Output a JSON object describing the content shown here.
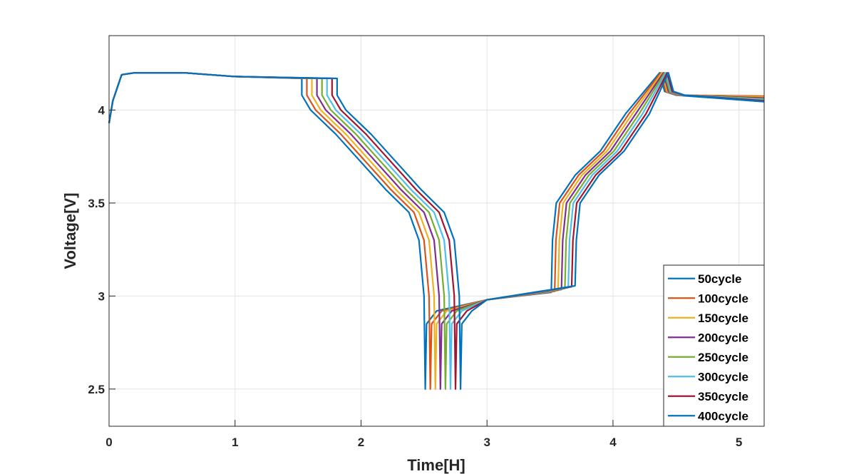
{
  "chart_data": {
    "type": "line",
    "xlabel": "Time[H]",
    "ylabel": "Voltage[V]",
    "xlim": [
      0,
      5.2
    ],
    "ylim": [
      2.3,
      4.4
    ],
    "xticks": [
      0,
      1,
      2,
      3,
      4,
      5
    ],
    "yticks": [
      2.5,
      3,
      3.5,
      4
    ],
    "grid": true,
    "legend_position": "lower right",
    "series": [
      {
        "name": "50cycle",
        "color": "#0072BD",
        "x": [
          0,
          0.03,
          0.1,
          0.2,
          0.6,
          1,
          1.53,
          1.53,
          1.6,
          1.8,
          2,
          2.2,
          2.38,
          2.46,
          2.5,
          2.51,
          2.52,
          2.6,
          3,
          3.51,
          3.52,
          3.55,
          3.7,
          3.9,
          4.1,
          4.37,
          4.41,
          4.5,
          5.2
        ],
        "values": [
          3.93,
          4.05,
          4.19,
          4.2,
          4.2,
          4.18,
          4.17,
          4.08,
          4,
          3.87,
          3.72,
          3.57,
          3.45,
          3.3,
          3,
          2.5,
          2.85,
          2.92,
          2.98,
          3.02,
          3.3,
          3.5,
          3.65,
          3.78,
          3.98,
          4.2,
          4.1,
          4.08,
          4.045
        ]
      },
      {
        "name": "100cycle",
        "color": "#D95319",
        "x": [
          0,
          0.03,
          0.1,
          0.2,
          0.6,
          1,
          1.57,
          1.57,
          1.64,
          1.84,
          2.04,
          2.24,
          2.42,
          2.5,
          2.54,
          2.55,
          2.56,
          2.64,
          3,
          3.537,
          3.547,
          3.577,
          3.727,
          3.927,
          4.127,
          4.38,
          4.42,
          4.51,
          5.2
        ],
        "values": [
          3.93,
          4.05,
          4.19,
          4.2,
          4.2,
          4.18,
          4.17,
          4.08,
          4,
          3.87,
          3.72,
          3.57,
          3.45,
          3.3,
          3,
          2.5,
          2.85,
          2.92,
          2.98,
          3.025,
          3.3,
          3.5,
          3.65,
          3.78,
          3.98,
          4.2,
          4.1,
          4.08,
          4.075
        ]
      },
      {
        "name": "150cycle",
        "color": "#EDB120",
        "x": [
          0,
          0.03,
          0.1,
          0.2,
          0.6,
          1,
          1.61,
          1.61,
          1.68,
          1.88,
          2.08,
          2.28,
          2.46,
          2.54,
          2.58,
          2.59,
          2.6,
          2.68,
          3,
          3.564,
          3.574,
          3.604,
          3.754,
          3.954,
          4.154,
          4.39,
          4.43,
          4.52,
          5.2
        ],
        "values": [
          3.93,
          4.05,
          4.19,
          4.2,
          4.2,
          4.18,
          4.17,
          4.08,
          4,
          3.87,
          3.72,
          3.57,
          3.45,
          3.3,
          3,
          2.5,
          2.85,
          2.92,
          2.98,
          3.03,
          3.3,
          3.5,
          3.65,
          3.78,
          3.98,
          4.2,
          4.1,
          4.08,
          4.07
        ]
      },
      {
        "name": "200cycle",
        "color": "#7E2F8E",
        "x": [
          0,
          0.03,
          0.1,
          0.2,
          0.6,
          1,
          1.65,
          1.65,
          1.72,
          1.92,
          2.12,
          2.32,
          2.5,
          2.58,
          2.62,
          2.63,
          2.64,
          2.72,
          3,
          3.591,
          3.601,
          3.631,
          3.781,
          3.981,
          4.181,
          4.4,
          4.44,
          4.53,
          5.2
        ],
        "values": [
          3.93,
          4.05,
          4.19,
          4.2,
          4.2,
          4.18,
          4.17,
          4.08,
          4,
          3.87,
          3.72,
          3.57,
          3.45,
          3.3,
          3,
          2.5,
          2.85,
          2.92,
          2.98,
          3.035,
          3.3,
          3.5,
          3.65,
          3.78,
          3.98,
          4.2,
          4.1,
          4.08,
          4.065
        ]
      },
      {
        "name": "250cycle",
        "color": "#77AC30",
        "x": [
          0,
          0.03,
          0.1,
          0.2,
          0.6,
          1,
          1.69,
          1.69,
          1.76,
          1.96,
          2.16,
          2.36,
          2.54,
          2.62,
          2.66,
          2.67,
          2.68,
          2.76,
          3,
          3.618,
          3.628,
          3.658,
          3.808,
          4.008,
          4.208,
          4.41,
          4.45,
          4.54,
          5.2
        ],
        "values": [
          3.93,
          4.05,
          4.19,
          4.2,
          4.2,
          4.18,
          4.17,
          4.08,
          4,
          3.87,
          3.72,
          3.57,
          3.45,
          3.3,
          3,
          2.5,
          2.85,
          2.92,
          2.98,
          3.04,
          3.3,
          3.5,
          3.65,
          3.78,
          3.98,
          4.2,
          4.1,
          4.08,
          4.06
        ]
      },
      {
        "name": "300cycle",
        "color": "#4DBEEE",
        "x": [
          0,
          0.03,
          0.1,
          0.2,
          0.6,
          1,
          1.73,
          1.73,
          1.8,
          2,
          2.2,
          2.4,
          2.58,
          2.66,
          2.7,
          2.71,
          2.72,
          2.8,
          3,
          3.645,
          3.655,
          3.685,
          3.835,
          4.035,
          4.235,
          4.42,
          4.46,
          4.55,
          5.2
        ],
        "values": [
          3.93,
          4.05,
          4.19,
          4.2,
          4.2,
          4.18,
          4.17,
          4.08,
          4,
          3.87,
          3.72,
          3.57,
          3.45,
          3.3,
          3,
          2.5,
          2.85,
          2.92,
          2.98,
          3.045,
          3.3,
          3.5,
          3.65,
          3.78,
          3.98,
          4.2,
          4.1,
          4.08,
          4.055
        ]
      },
      {
        "name": "350cycle",
        "color": "#A2142F",
        "x": [
          0,
          0.03,
          0.1,
          0.2,
          0.6,
          1,
          1.77,
          1.77,
          1.84,
          2.04,
          2.24,
          2.44,
          2.62,
          2.7,
          2.74,
          2.75,
          2.76,
          2.84,
          3,
          3.672,
          3.682,
          3.712,
          3.862,
          4.062,
          4.262,
          4.43,
          4.47,
          4.56,
          5.2
        ],
        "values": [
          3.93,
          4.05,
          4.19,
          4.2,
          4.2,
          4.18,
          4.17,
          4.08,
          4,
          3.87,
          3.72,
          3.57,
          3.45,
          3.3,
          3,
          2.5,
          2.85,
          2.92,
          2.98,
          3.05,
          3.3,
          3.5,
          3.65,
          3.78,
          3.98,
          4.2,
          4.1,
          4.08,
          4.05
        ]
      },
      {
        "name": "400cycle",
        "color": "#0072BD",
        "x": [
          0,
          0.03,
          0.1,
          0.2,
          0.6,
          1,
          1.81,
          1.81,
          1.88,
          2.08,
          2.28,
          2.48,
          2.66,
          2.74,
          2.78,
          2.79,
          2.8,
          2.88,
          3,
          3.699,
          3.709,
          3.739,
          3.889,
          4.089,
          4.289,
          4.44,
          4.48,
          4.57,
          5.2
        ],
        "values": [
          3.93,
          4.05,
          4.19,
          4.2,
          4.2,
          4.18,
          4.17,
          4.08,
          4,
          3.87,
          3.72,
          3.57,
          3.45,
          3.3,
          3,
          2.5,
          2.85,
          2.92,
          2.98,
          3.055,
          3.3,
          3.5,
          3.65,
          3.78,
          3.98,
          4.2,
          4.1,
          4.08,
          4.045
        ]
      }
    ]
  }
}
